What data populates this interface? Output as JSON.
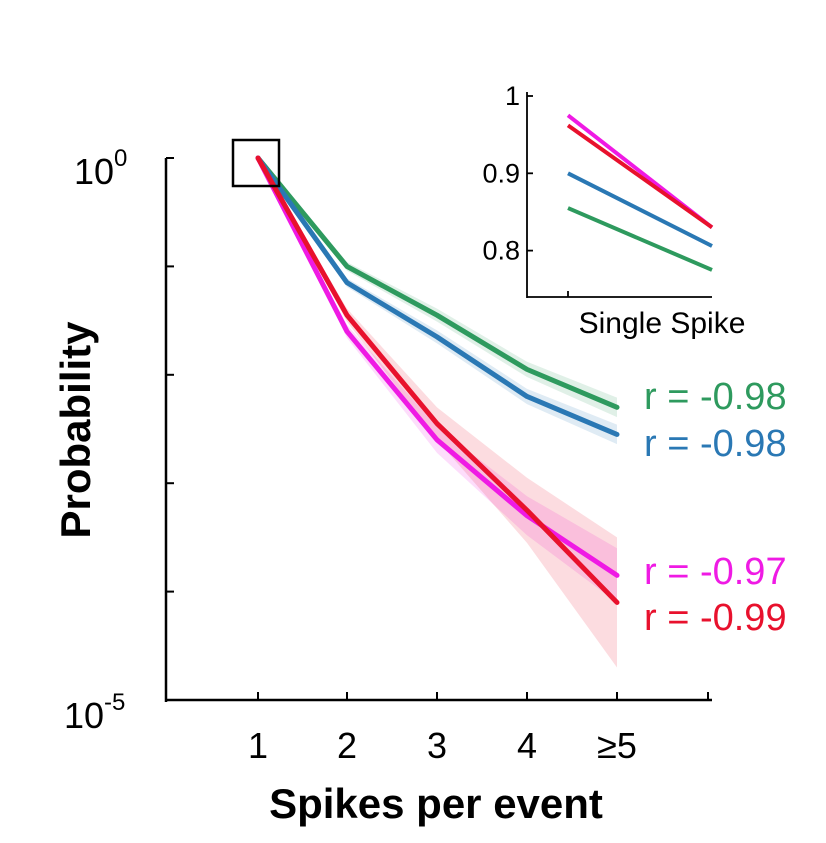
{
  "chart_data": {
    "type": "line",
    "yscale": "log",
    "xlabel": "Spikes per event",
    "ylabel": "Probability",
    "categories": [
      "1",
      "2",
      "3",
      "4",
      "≥5"
    ],
    "ylim_exponents": [
      -5,
      0
    ],
    "ytick_labels": [
      {
        "base": "10",
        "exp": "0"
      },
      {
        "base": "10",
        "exp": "-5"
      }
    ],
    "series": [
      {
        "name": "green",
        "color": "#2e9a5e",
        "r_label": "r = -0.98",
        "log10_values": [
          0,
          -1.0,
          -1.45,
          -1.95,
          -2.3
        ],
        "band_log10": [
          0.0,
          0.04,
          0.06,
          0.07,
          0.09
        ]
      },
      {
        "name": "blue",
        "color": "#2a78b4",
        "r_label": "r = -0.98",
        "log10_values": [
          0,
          -1.15,
          -1.65,
          -2.2,
          -2.55
        ],
        "band_log10": [
          0.0,
          0.04,
          0.06,
          0.07,
          0.09
        ]
      },
      {
        "name": "magenta",
        "color": "#ef1ae4",
        "r_label": "r = -0.97",
        "log10_values": [
          0,
          -1.6,
          -2.6,
          -3.3,
          -3.85
        ],
        "band_log10": [
          0.0,
          0.06,
          0.12,
          0.18,
          0.25
        ]
      },
      {
        "name": "red",
        "color": "#e8112d",
        "r_label": "r = -0.99",
        "log10_values": [
          0,
          -1.45,
          -2.45,
          -3.25,
          -4.1
        ],
        "band_log10": [
          0.0,
          0.06,
          0.15,
          0.3,
          0.6
        ]
      }
    ],
    "inset": {
      "xlabel": "Single Spike",
      "yticks": [
        "1",
        "0.9",
        "0.8"
      ],
      "ylim": [
        0.74,
        1.0
      ],
      "series": [
        {
          "name": "magenta",
          "color": "#ef1ae4",
          "values": [
            0.975,
            0.83
          ]
        },
        {
          "name": "red",
          "color": "#e8112d",
          "values": [
            0.962,
            0.83
          ]
        },
        {
          "name": "blue",
          "color": "#2a78b4",
          "values": [
            0.9,
            0.806
          ]
        },
        {
          "name": "green",
          "color": "#2e9a5e",
          "values": [
            0.855,
            0.775
          ]
        }
      ]
    }
  }
}
